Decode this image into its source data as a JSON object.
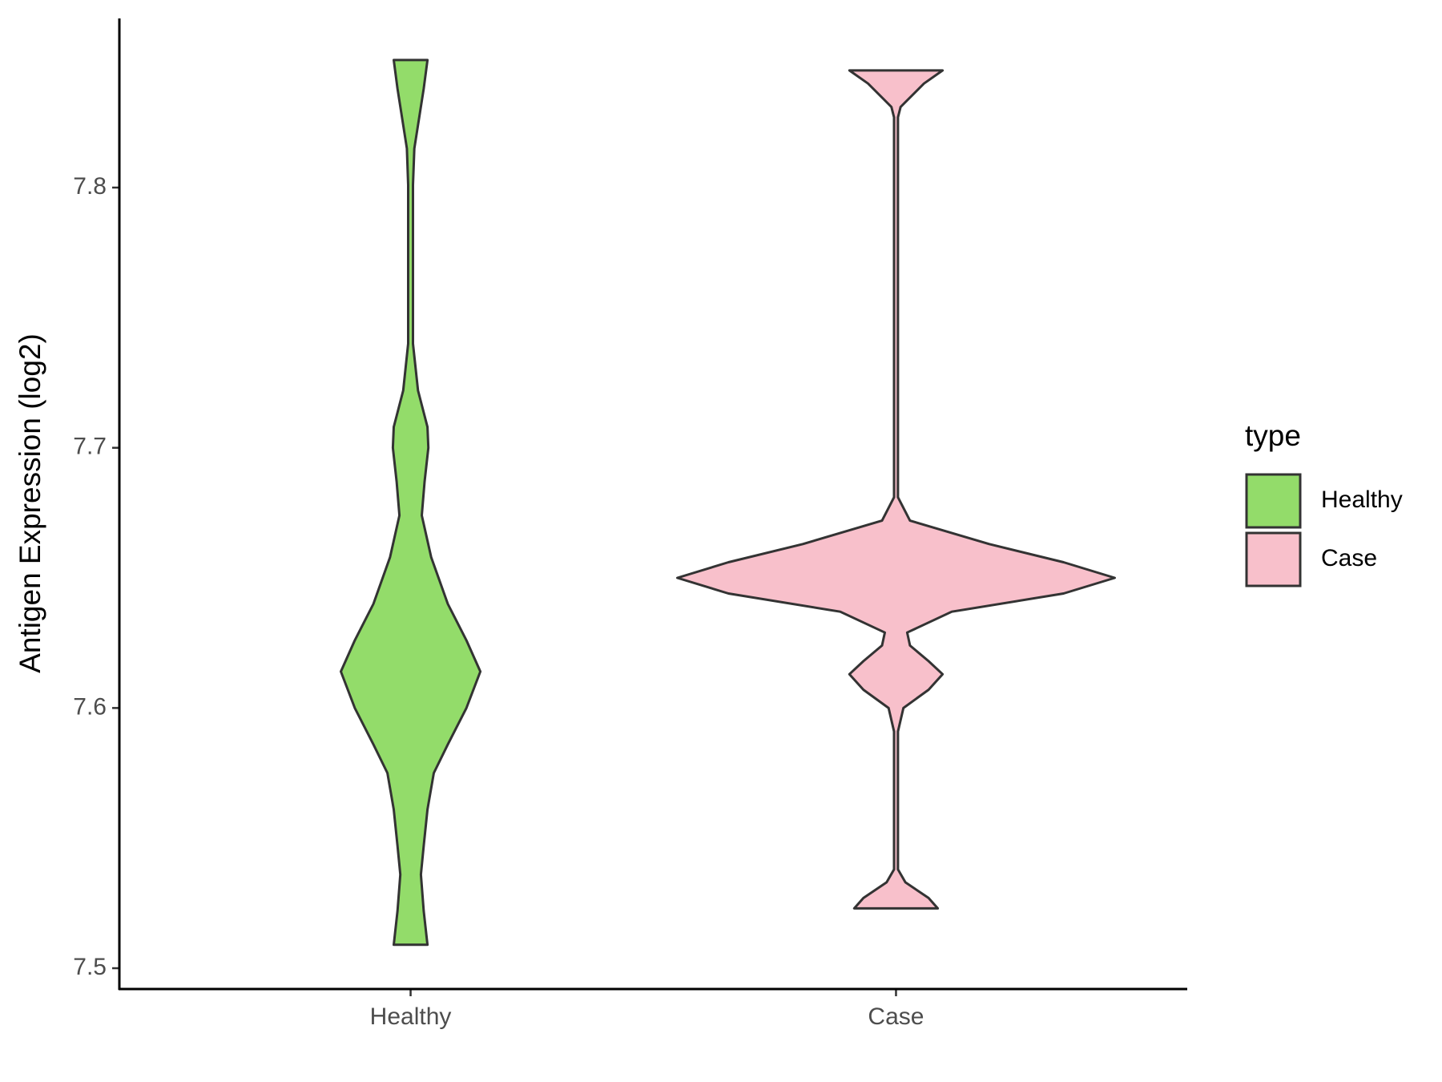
{
  "chart_data": {
    "type": "violin",
    "y_label": "Antigen Expression (log2)",
    "categories": [
      "Healthy",
      "Case"
    ],
    "legend_title": "type",
    "ylim": [
      7.492,
      7.865
    ],
    "yticks": [
      7.5,
      7.6,
      7.7,
      7.8
    ],
    "grid": false,
    "series": [
      {
        "name": "Healthy",
        "color": "#93dc6a",
        "y": [
          7.509,
          7.522,
          7.536,
          7.547,
          7.561,
          7.575,
          7.586,
          7.6,
          7.614,
          7.626,
          7.64,
          7.658,
          7.674,
          7.687,
          7.7,
          7.708,
          7.722,
          7.74,
          7.801,
          7.815,
          7.838,
          7.849
        ],
        "density": [
          0.077,
          0.06,
          0.047,
          0.06,
          0.077,
          0.106,
          0.17,
          0.255,
          0.319,
          0.255,
          0.17,
          0.094,
          0.051,
          0.064,
          0.081,
          0.077,
          0.034,
          0.011,
          0.011,
          0.017,
          0.06,
          0.077
        ]
      },
      {
        "name": "Case",
        "color": "#f8c0cb",
        "y": [
          7.523,
          7.527,
          7.533,
          7.538,
          7.591,
          7.6,
          7.607,
          7.613,
          7.618,
          7.624,
          7.629,
          7.637,
          7.644,
          7.65,
          7.656,
          7.663,
          7.672,
          7.681,
          7.827,
          7.831,
          7.84,
          7.845
        ],
        "density": [
          0.191,
          0.149,
          0.043,
          0.009,
          0.009,
          0.034,
          0.149,
          0.213,
          0.149,
          0.064,
          0.051,
          0.255,
          0.766,
          1,
          0.766,
          0.426,
          0.064,
          0.009,
          0.009,
          0.021,
          0.128,
          0.213
        ]
      }
    ]
  }
}
